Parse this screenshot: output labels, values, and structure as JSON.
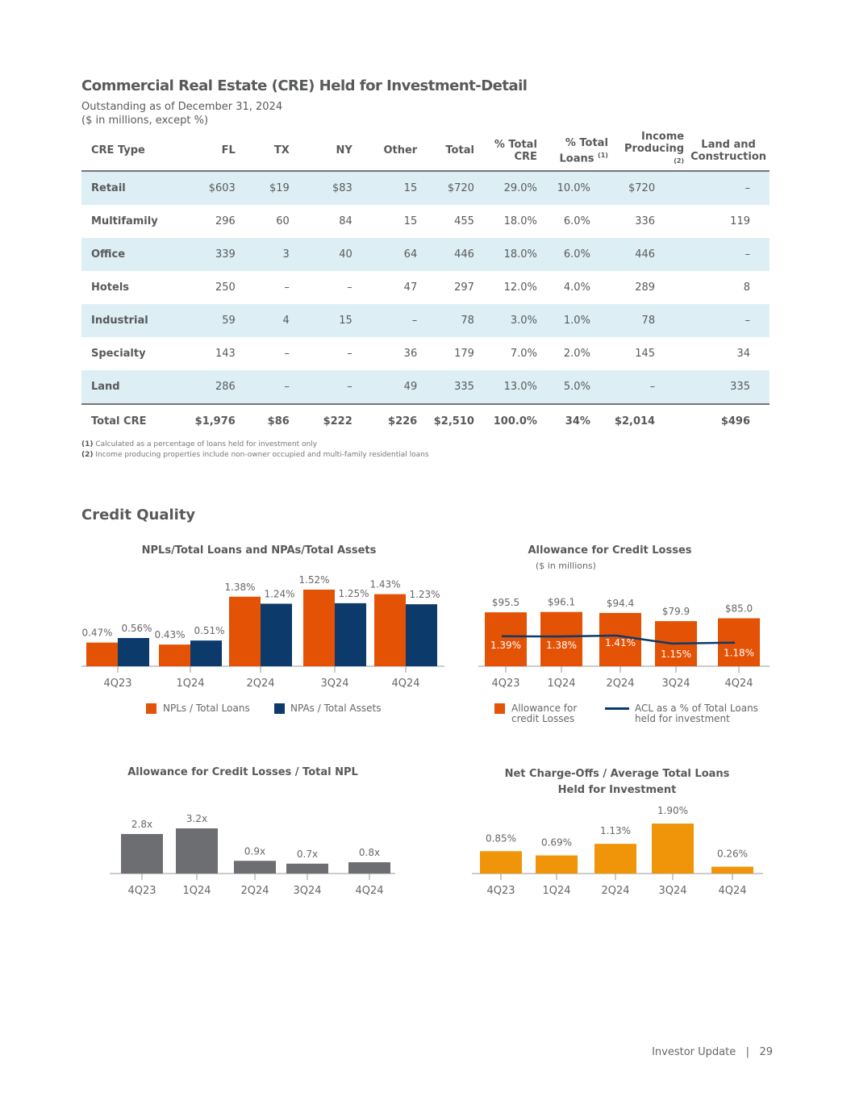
{
  "title": "Commercial Real Estate (CRE) Held for Investment-Detail",
  "subtitle1": "Outstanding as of December 31, 2024",
  "subtitle2": "($ in millions, except %)",
  "table": {
    "headers": [
      "CRE Type",
      "FL",
      "TX",
      "NY",
      "Other",
      "Total",
      "% Total CRE",
      "% Total Loans",
      "Income Producing",
      "Land and Construction"
    ],
    "header_notes": {
      "loans": "(1)",
      "income": "(2)"
    },
    "rows": [
      [
        "Retail",
        "$603",
        "$19",
        "$83",
        "15",
        "$720",
        "29.0%",
        "10.0%",
        "$720",
        "–"
      ],
      [
        "Multifamily",
        "296",
        "60",
        "84",
        "15",
        "455",
        "18.0%",
        "6.0%",
        "336",
        "119"
      ],
      [
        "Office",
        "339",
        "3",
        "40",
        "64",
        "446",
        "18.0%",
        "6.0%",
        "446",
        "–"
      ],
      [
        "Hotels",
        "250",
        "–",
        "–",
        "47",
        "297",
        "12.0%",
        "4.0%",
        "289",
        "8"
      ],
      [
        "Industrial",
        "59",
        "4",
        "15",
        "–",
        "78",
        "3.0%",
        "1.0%",
        "78",
        "–"
      ],
      [
        "Specialty",
        "143",
        "–",
        "–",
        "36",
        "179",
        "7.0%",
        "2.0%",
        "145",
        "34"
      ],
      [
        "Land",
        "286",
        "–",
        "–",
        "49",
        "335",
        "13.0%",
        "5.0%",
        "–",
        "335"
      ]
    ],
    "total": [
      "Total CRE",
      "$1,976",
      "$86",
      "$222",
      "$226",
      "$2,510",
      "100.0%",
      "34%",
      "$2,014",
      "$496"
    ]
  },
  "footnotes": [
    {
      "num": "(1)",
      "text": " Calculated as a percentage of loans held for investment only"
    },
    {
      "num": "(2)",
      "text": " Income producing properties include non-owner occupied and multi-family residential loans"
    }
  ],
  "section2": "Credit Quality",
  "colors": {
    "orange": "#e35205",
    "navy": "#0b3a6b",
    "gray": "#6d6e71",
    "amber": "#f0950a",
    "row": "#ddeff5"
  },
  "chart_data": [
    {
      "type": "bar",
      "title": "NPLs/Total Loans and NPAs/Total Assets",
      "categories": [
        "4Q23",
        "1Q24",
        "2Q24",
        "3Q24",
        "4Q24"
      ],
      "series": [
        {
          "name": "NPLs / Total Loans",
          "values": [
            0.47,
            0.43,
            1.38,
            1.52,
            1.43
          ],
          "labels": [
            "0.47%",
            "0.43%",
            "1.38%",
            "1.52%",
            "1.43%"
          ]
        },
        {
          "name": "NPAs / Total Assets",
          "values": [
            0.56,
            0.51,
            1.24,
            1.25,
            1.23
          ],
          "labels": [
            "0.56%",
            "0.51%",
            "1.24%",
            "1.25%",
            "1.23%"
          ]
        }
      ]
    },
    {
      "type": "bar",
      "title": "Allowance for Credit Losses",
      "subtitle": "($ in millions)",
      "categories": [
        "4Q23",
        "1Q24",
        "2Q24",
        "3Q24",
        "4Q24"
      ],
      "series": [
        {
          "name": "Allowance for credit Losses",
          "values": [
            95.5,
            96.1,
            94.4,
            79.9,
            85.0
          ],
          "labels": [
            "$95.5",
            "$96.1",
            "$94.4",
            "$79.9",
            "$85.0"
          ]
        },
        {
          "name": "ACL as a % of Total Loans held for investment",
          "type": "line",
          "values": [
            1.39,
            1.38,
            1.41,
            1.15,
            1.18
          ],
          "labels": [
            "1.39%",
            "1.38%",
            "1.41%",
            "1.15%",
            "1.18%"
          ]
        }
      ],
      "legend": [
        "Allowance for",
        "credit Losses",
        "ACL as a % of Total Loans",
        "held for investment"
      ]
    },
    {
      "type": "bar",
      "title": "Allowance for Credit Losses / Total NPL",
      "categories": [
        "4Q23",
        "1Q24",
        "2Q24",
        "3Q24",
        "4Q24"
      ],
      "values": [
        2.8,
        3.2,
        0.9,
        0.7,
        0.8
      ],
      "labels": [
        "2.8x",
        "3.2x",
        "0.9x",
        "0.7x",
        "0.8x"
      ]
    },
    {
      "type": "bar",
      "title": "Net Charge-Offs / Average Total Loans",
      "title2": "Held for Investment",
      "categories": [
        "4Q23",
        "1Q24",
        "2Q24",
        "3Q24",
        "4Q24"
      ],
      "values": [
        0.85,
        0.69,
        1.13,
        1.9,
        0.26
      ],
      "labels": [
        "0.85%",
        "0.69%",
        "1.13%",
        "1.90%",
        "0.26%"
      ]
    }
  ],
  "footer": {
    "text": "Investor Update",
    "sep": "|",
    "page": "29"
  }
}
